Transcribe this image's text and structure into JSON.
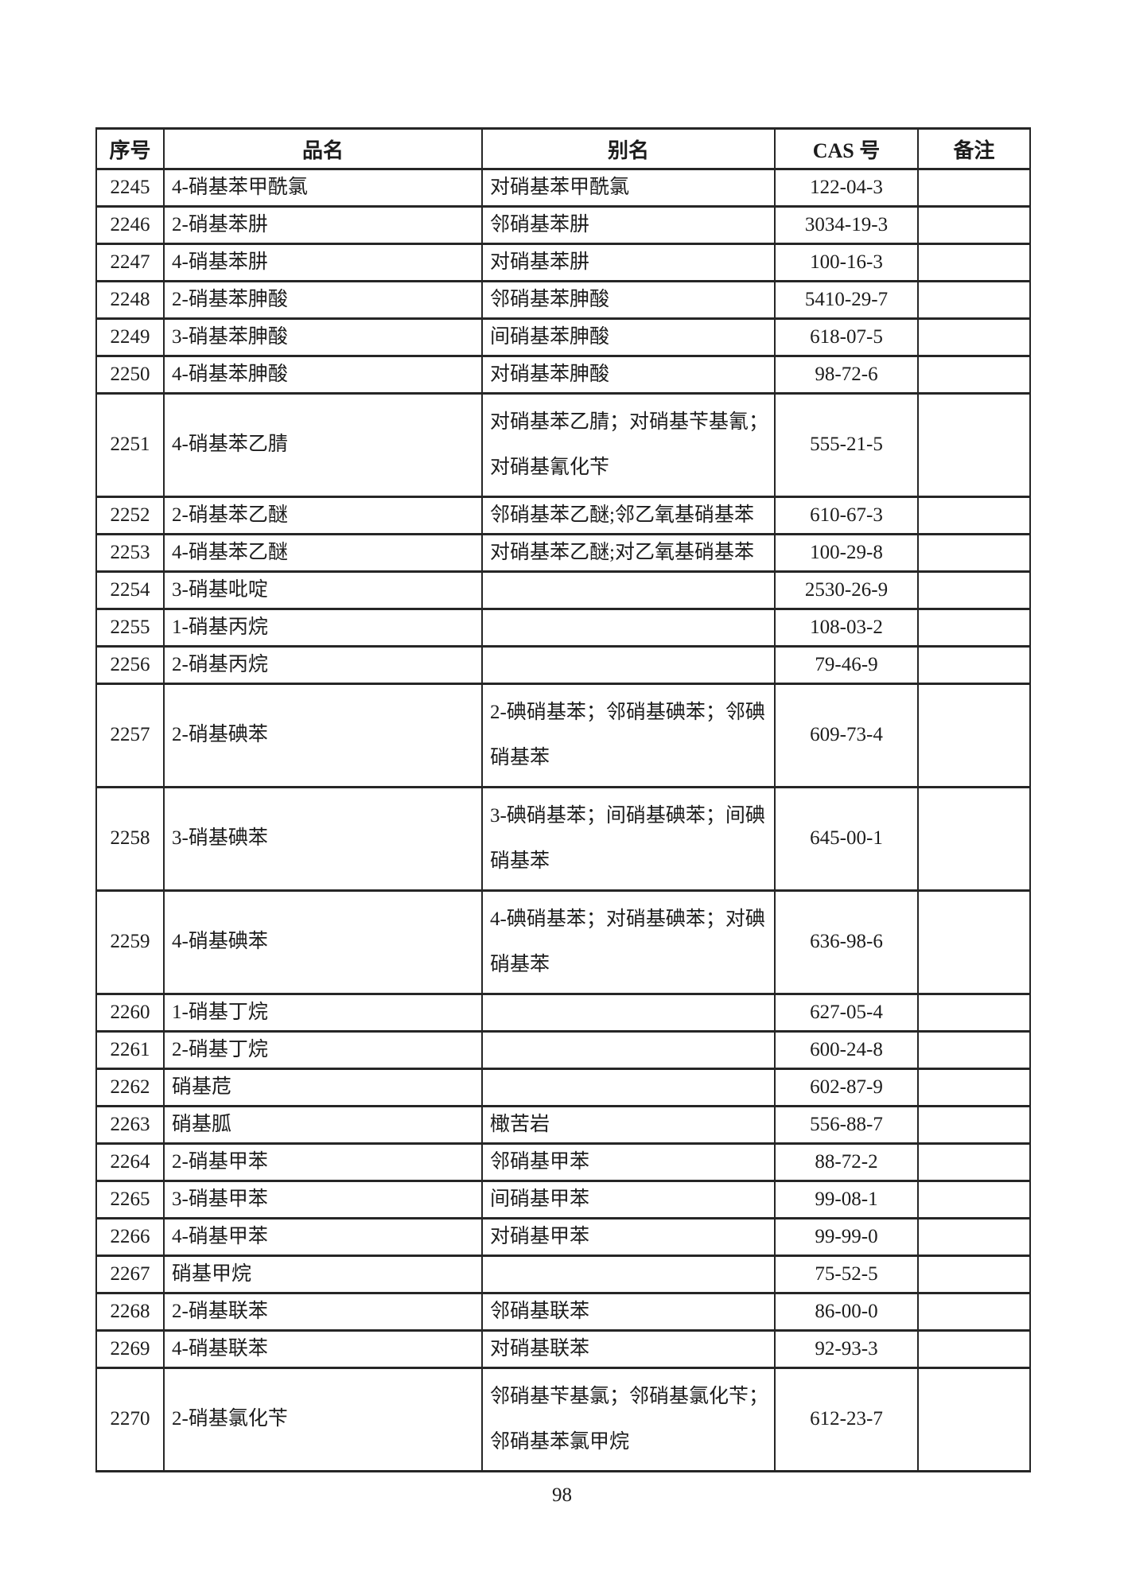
{
  "document": {
    "page_number": "98"
  },
  "table": {
    "columns": [
      "序号",
      "品名",
      "别名",
      "CAS 号",
      "备注"
    ],
    "rows": [
      {
        "no": "2245",
        "name": "4-硝基苯甲酰氯",
        "alias": "对硝基苯甲酰氯",
        "cas": "122-04-3",
        "remark": "",
        "lines": 1
      },
      {
        "no": "2246",
        "name": "2-硝基苯肼",
        "alias": "邻硝基苯肼",
        "cas": "3034-19-3",
        "remark": "",
        "lines": 1
      },
      {
        "no": "2247",
        "name": "4-硝基苯肼",
        "alias": "对硝基苯肼",
        "cas": "100-16-3",
        "remark": "",
        "lines": 1
      },
      {
        "no": "2248",
        "name": "2-硝基苯胂酸",
        "alias": "邻硝基苯胂酸",
        "cas": "5410-29-7",
        "remark": "",
        "lines": 1
      },
      {
        "no": "2249",
        "name": "3-硝基苯胂酸",
        "alias": "间硝基苯胂酸",
        "cas": "618-07-5",
        "remark": "",
        "lines": 1
      },
      {
        "no": "2250",
        "name": "4-硝基苯胂酸",
        "alias": "对硝基苯胂酸",
        "cas": "98-72-6",
        "remark": "",
        "lines": 1
      },
      {
        "no": "2251",
        "name": "4-硝基苯乙腈",
        "alias": "对硝基苯乙腈；对硝基苄基氰；\n对硝基氰化苄",
        "cas": "555-21-5",
        "remark": "",
        "lines": 2
      },
      {
        "no": "2252",
        "name": "2-硝基苯乙醚",
        "alias": "邻硝基苯乙醚;邻乙氧基硝基苯",
        "cas": "610-67-3",
        "remark": "",
        "lines": 1
      },
      {
        "no": "2253",
        "name": "4-硝基苯乙醚",
        "alias": "对硝基苯乙醚;对乙氧基硝基苯",
        "cas": "100-29-8",
        "remark": "",
        "lines": 1
      },
      {
        "no": "2254",
        "name": "3-硝基吡啶",
        "alias": "",
        "cas": "2530-26-9",
        "remark": "",
        "lines": 1
      },
      {
        "no": "2255",
        "name": "1-硝基丙烷",
        "alias": "",
        "cas": "108-03-2",
        "remark": "",
        "lines": 1
      },
      {
        "no": "2256",
        "name": "2-硝基丙烷",
        "alias": "",
        "cas": "79-46-9",
        "remark": "",
        "lines": 1
      },
      {
        "no": "2257",
        "name": "2-硝基碘苯",
        "alias": "2-碘硝基苯；邻硝基碘苯；邻碘\n硝基苯",
        "cas": "609-73-4",
        "remark": "",
        "lines": 2
      },
      {
        "no": "2258",
        "name": "3-硝基碘苯",
        "alias": "3-碘硝基苯；间硝基碘苯；间碘\n硝基苯",
        "cas": "645-00-1",
        "remark": "",
        "lines": 2
      },
      {
        "no": "2259",
        "name": "4-硝基碘苯",
        "alias": "4-碘硝基苯；对硝基碘苯；对碘\n硝基苯",
        "cas": "636-98-6",
        "remark": "",
        "lines": 2
      },
      {
        "no": "2260",
        "name": "1-硝基丁烷",
        "alias": "",
        "cas": "627-05-4",
        "remark": "",
        "lines": 1
      },
      {
        "no": "2261",
        "name": "2-硝基丁烷",
        "alias": "",
        "cas": "600-24-8",
        "remark": "",
        "lines": 1
      },
      {
        "no": "2262",
        "name": "硝基苊",
        "alias": "",
        "cas": "602-87-9",
        "remark": "",
        "lines": 1
      },
      {
        "no": "2263",
        "name": "硝基胍",
        "alias": "橄苦岩",
        "cas": "556-88-7",
        "remark": "",
        "lines": 1
      },
      {
        "no": "2264",
        "name": "2-硝基甲苯",
        "alias": "邻硝基甲苯",
        "cas": "88-72-2",
        "remark": "",
        "lines": 1
      },
      {
        "no": "2265",
        "name": "3-硝基甲苯",
        "alias": "间硝基甲苯",
        "cas": "99-08-1",
        "remark": "",
        "lines": 1
      },
      {
        "no": "2266",
        "name": "4-硝基甲苯",
        "alias": "对硝基甲苯",
        "cas": "99-99-0",
        "remark": "",
        "lines": 1
      },
      {
        "no": "2267",
        "name": "硝基甲烷",
        "alias": "",
        "cas": "75-52-5",
        "remark": "",
        "lines": 1
      },
      {
        "no": "2268",
        "name": "2-硝基联苯",
        "alias": "邻硝基联苯",
        "cas": "86-00-0",
        "remark": "",
        "lines": 1
      },
      {
        "no": "2269",
        "name": "4-硝基联苯",
        "alias": "对硝基联苯",
        "cas": "92-93-3",
        "remark": "",
        "lines": 1
      },
      {
        "no": "2270",
        "name": "2-硝基氯化苄",
        "alias": "邻硝基苄基氯；邻硝基氯化苄；\n邻硝基苯氯甲烷",
        "cas": "612-23-7",
        "remark": "",
        "lines": 2
      }
    ]
  }
}
